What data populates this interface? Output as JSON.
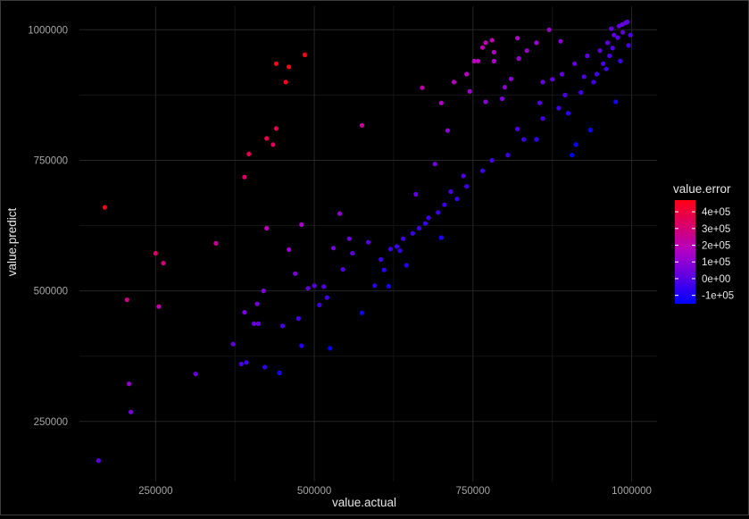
{
  "chart_data": {
    "type": "scatter",
    "title": "",
    "xlabel": "value.actual",
    "ylabel": "value.predict",
    "xlim": [
      130000,
      1040000
    ],
    "ylim": [
      135000,
      1045000
    ],
    "x_ticks": [
      250000,
      500000,
      750000,
      1000000
    ],
    "y_ticks": [
      250000,
      500000,
      750000,
      1000000
    ],
    "x_tick_labels": [
      "250000",
      "500000",
      "750000",
      "1000000"
    ],
    "y_tick_labels": [
      "250000",
      "500000",
      "750000",
      "1000000"
    ],
    "grid": true,
    "background": "#000000",
    "grid_major_color": "#262626",
    "grid_minor_color": "#141414",
    "legend": {
      "title": "value.error",
      "position": "right",
      "breaks": [
        400000,
        300000,
        200000,
        100000,
        0,
        -100000
      ],
      "labels": [
        "4e+05",
        "3e+05",
        "2e+05",
        "1e+05",
        "0e+00",
        "-1e+05"
      ],
      "range": [
        -150000,
        470000
      ],
      "low_color": "#0000ff",
      "high_color": "#ff0000"
    },
    "points": [
      [
        160000,
        175000
      ],
      [
        170000,
        660000
      ],
      [
        205000,
        483000
      ],
      [
        208000,
        322000
      ],
      [
        211000,
        268000
      ],
      [
        250000,
        572000
      ],
      [
        255000,
        470000
      ],
      [
        262000,
        553000
      ],
      [
        313000,
        341000
      ],
      [
        345000,
        591000
      ],
      [
        390000,
        718000
      ],
      [
        397000,
        762000
      ],
      [
        372000,
        398000
      ],
      [
        385000,
        360000
      ],
      [
        390000,
        459000
      ],
      [
        393000,
        363000
      ],
      [
        405000,
        437000
      ],
      [
        412000,
        437000
      ],
      [
        410000,
        475000
      ],
      [
        420000,
        500000
      ],
      [
        422000,
        354000
      ],
      [
        425000,
        620000
      ],
      [
        425000,
        792000
      ],
      [
        435000,
        780000
      ],
      [
        440000,
        811000
      ],
      [
        440000,
        935000
      ],
      [
        455000,
        900000
      ],
      [
        460000,
        929000
      ],
      [
        485000,
        952000
      ],
      [
        445000,
        343000
      ],
      [
        450000,
        433000
      ],
      [
        460000,
        579000
      ],
      [
        470000,
        533000
      ],
      [
        475000,
        447000
      ],
      [
        480000,
        395000
      ],
      [
        480000,
        627000
      ],
      [
        490000,
        505000
      ],
      [
        500000,
        510000
      ],
      [
        508000,
        473000
      ],
      [
        515000,
        508000
      ],
      [
        520000,
        487000
      ],
      [
        525000,
        390000
      ],
      [
        530000,
        582000
      ],
      [
        540000,
        648000
      ],
      [
        545000,
        541000
      ],
      [
        555000,
        600000
      ],
      [
        560000,
        572000
      ],
      [
        575000,
        817000
      ],
      [
        575000,
        458000
      ],
      [
        585000,
        593000
      ],
      [
        595000,
        510000
      ],
      [
        610000,
        540000
      ],
      [
        617000,
        509000
      ],
      [
        635000,
        577000
      ],
      [
        645000,
        549000
      ],
      [
        660000,
        685000
      ],
      [
        670000,
        889000
      ],
      [
        675000,
        629000
      ],
      [
        690000,
        743000
      ],
      [
        700000,
        602000
      ],
      [
        700000,
        860000
      ],
      [
        710000,
        807000
      ],
      [
        720000,
        900000
      ],
      [
        740000,
        915000
      ],
      [
        745000,
        882000
      ],
      [
        752000,
        940000
      ],
      [
        758000,
        940000
      ],
      [
        765000,
        966000
      ],
      [
        770000,
        975000
      ],
      [
        780000,
        980000
      ],
      [
        783000,
        957000
      ],
      [
        783000,
        940000
      ],
      [
        770000,
        862000
      ],
      [
        796000,
        868000
      ],
      [
        800000,
        890000
      ],
      [
        810000,
        906000
      ],
      [
        820000,
        984000
      ],
      [
        822000,
        945000
      ],
      [
        835000,
        960000
      ],
      [
        850000,
        975000
      ],
      [
        870000,
        1000000
      ],
      [
        888000,
        978000
      ],
      [
        906000,
        760000
      ],
      [
        912000,
        780000
      ],
      [
        935000,
        808000
      ],
      [
        975000,
        862000
      ],
      [
        968000,
        1002000
      ],
      [
        980000,
        1007000
      ],
      [
        985000,
        1010000
      ],
      [
        990000,
        1013000
      ],
      [
        993000,
        1015000
      ],
      [
        986000,
        995000
      ],
      [
        978000,
        985000
      ],
      [
        970000,
        965000
      ],
      [
        955000,
        935000
      ],
      [
        960000,
        925000
      ],
      [
        945000,
        915000
      ],
      [
        940000,
        900000
      ],
      [
        920000,
        880000
      ],
      [
        925000,
        910000
      ],
      [
        900000,
        840000
      ],
      [
        895000,
        875000
      ],
      [
        885000,
        850000
      ],
      [
        860000,
        830000
      ],
      [
        850000,
        790000
      ],
      [
        855000,
        860000
      ],
      [
        830000,
        790000
      ],
      [
        820000,
        810000
      ],
      [
        805000,
        760000
      ],
      [
        780000,
        750000
      ],
      [
        765000,
        730000
      ],
      [
        740000,
        700000
      ],
      [
        735000,
        720000
      ],
      [
        725000,
        676000
      ],
      [
        715000,
        690000
      ],
      [
        705000,
        665000
      ],
      [
        695000,
        650000
      ],
      [
        680000,
        640000
      ],
      [
        665000,
        620000
      ],
      [
        655000,
        610000
      ],
      [
        640000,
        600000
      ],
      [
        630000,
        585000
      ],
      [
        620000,
        580000
      ],
      [
        605000,
        560000
      ],
      [
        860000,
        900000
      ],
      [
        875000,
        905000
      ],
      [
        890000,
        915000
      ],
      [
        910000,
        935000
      ],
      [
        930000,
        950000
      ],
      [
        950000,
        960000
      ],
      [
        962000,
        975000
      ],
      [
        972000,
        990000
      ],
      [
        998000,
        990000
      ],
      [
        995000,
        970000
      ],
      [
        982000,
        940000
      ],
      [
        965000,
        950000
      ]
    ]
  }
}
